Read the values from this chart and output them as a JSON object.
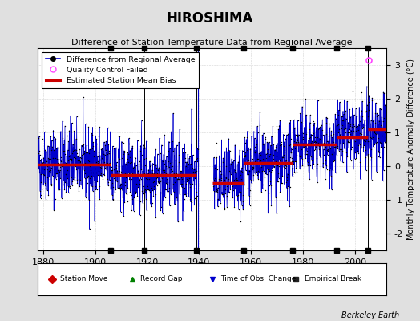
{
  "title": "HIROSHIMA",
  "subtitle": "Difference of Station Temperature Data from Regional Average",
  "ylabel": "Monthly Temperature Anomaly Difference (°C)",
  "xlabel_years": [
    1880,
    1900,
    1920,
    1940,
    1960,
    1980,
    2000
  ],
  "ylim": [
    -2.5,
    3.5
  ],
  "yticks": [
    -2,
    -1,
    0,
    1,
    2,
    3
  ],
  "xrange_start": 1878,
  "xrange_end": 2012,
  "background_color": "#e0e0e0",
  "plot_bg_color": "#ffffff",
  "line_color": "#0000cc",
  "bias_color": "#cc0000",
  "qc_color": "#ff44ff",
  "watermark": "Berkeley Earth",
  "seed": 42,
  "gap_start": 1939.5,
  "gap_end": 1945.5,
  "empirical_breaks": [
    1906,
    1919,
    1939,
    1957,
    1976,
    1993,
    2005
  ],
  "bias_segments": [
    {
      "start": 1878,
      "end": 1906,
      "value": 0.05
    },
    {
      "start": 1906,
      "end": 1939,
      "value": -0.25
    },
    {
      "start": 1945,
      "end": 1957,
      "value": -0.5
    },
    {
      "start": 1957,
      "end": 1976,
      "value": 0.1
    },
    {
      "start": 1976,
      "end": 1993,
      "value": 0.65
    },
    {
      "start": 1993,
      "end": 2005,
      "value": 0.85
    },
    {
      "start": 2005,
      "end": 2012,
      "value": 1.1
    }
  ],
  "qc_failed_points": [
    [
      2005.2,
      3.15
    ]
  ],
  "bottom_legend_items": [
    {
      "symbol": "D",
      "color": "#cc0000",
      "label": "Station Move"
    },
    {
      "symbol": "^",
      "color": "#008000",
      "label": "Record Gap"
    },
    {
      "symbol": "v",
      "color": "#0000cc",
      "label": "Time of Obs. Change"
    },
    {
      "symbol": "s",
      "color": "#222222",
      "label": "Empirical Break"
    }
  ],
  "break_markers_x": [
    1906,
    1919,
    1939,
    1957,
    1976,
    1993,
    2005
  ]
}
